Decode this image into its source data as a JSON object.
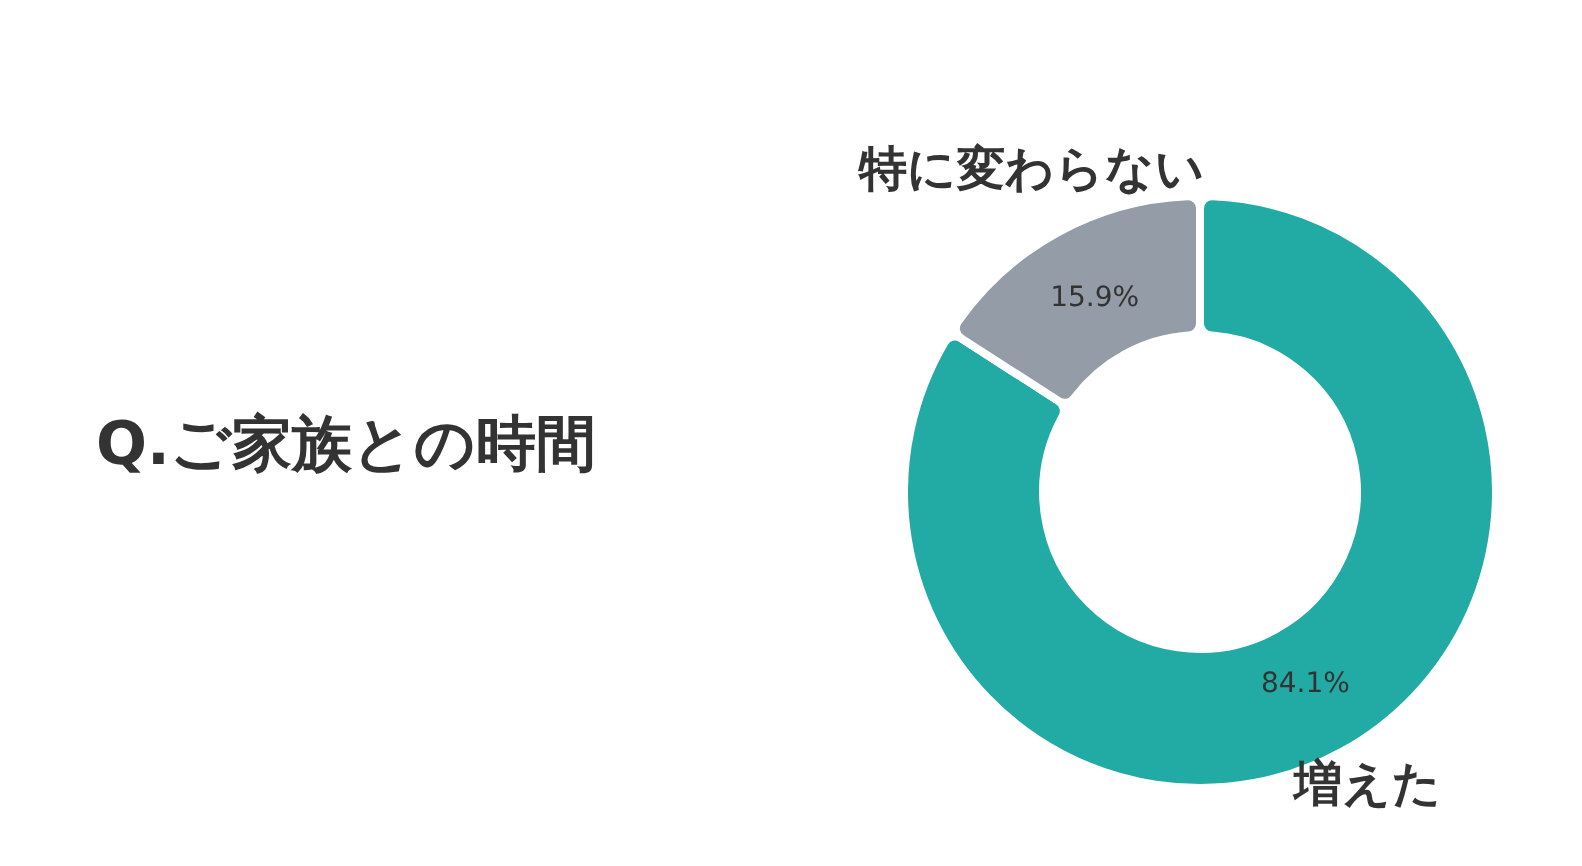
{
  "chart_data": {
    "type": "donut",
    "title": "Q.ご家族との時間",
    "categories": [
      "増えた",
      "特に変わらない"
    ],
    "values": [
      84.1,
      15.9
    ],
    "colors": [
      "#22aba5",
      "#939ca7"
    ],
    "value_labels": [
      "84.1%",
      "15.9%"
    ],
    "legend": false
  }
}
